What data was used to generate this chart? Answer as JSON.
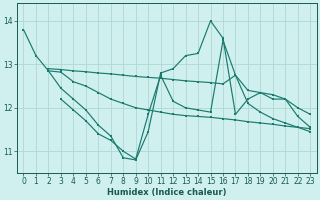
{
  "background_color": "#cff0ee",
  "grid_color": "#b0d8d4",
  "line_color": "#1a7a6e",
  "xlabel": "Humidex (Indice chaleur)",
  "xlim": [
    -0.5,
    23.5
  ],
  "ylim": [
    10.5,
    14.4
  ],
  "yticks": [
    11,
    12,
    13,
    14
  ],
  "xticks": [
    0,
    1,
    2,
    3,
    4,
    5,
    6,
    7,
    8,
    9,
    10,
    11,
    12,
    13,
    14,
    15,
    16,
    17,
    18,
    19,
    20,
    21,
    22,
    23
  ],
  "series": [
    {
      "x": [
        0,
        1,
        2,
        3,
        4,
        5,
        6,
        7,
        8,
        9,
        10,
        11,
        12,
        13,
        14,
        15,
        16,
        17,
        18,
        19,
        20,
        21,
        22,
        23
      ],
      "y": [
        13.8,
        13.2,
        12.85,
        12.45,
        12.2,
        11.95,
        11.6,
        11.35,
        10.85,
        10.8,
        11.45,
        12.8,
        12.9,
        13.2,
        13.25,
        14.0,
        13.6,
        11.85,
        12.2,
        12.35,
        12.2,
        12.2,
        11.8,
        11.55
      ]
    },
    {
      "x": [
        2,
        3,
        4,
        5,
        6,
        7,
        8,
        9,
        10,
        11,
        12,
        13,
        14,
        15,
        16,
        17,
        18,
        19,
        20,
        21,
        22,
        23
      ],
      "y": [
        12.9,
        12.88,
        12.85,
        12.83,
        12.8,
        12.78,
        12.75,
        12.72,
        12.7,
        12.68,
        12.65,
        12.62,
        12.6,
        12.58,
        12.55,
        12.75,
        12.4,
        12.35,
        12.3,
        12.2,
        12.0,
        11.85
      ]
    },
    {
      "x": [
        2,
        3,
        4,
        5,
        6,
        7,
        8,
        9,
        10,
        11,
        12,
        13,
        14,
        15,
        16,
        17,
        18,
        19,
        20,
        21,
        22,
        23
      ],
      "y": [
        12.85,
        12.82,
        12.6,
        12.5,
        12.35,
        12.2,
        12.1,
        12.0,
        11.95,
        11.9,
        11.85,
        11.82,
        11.8,
        11.78,
        11.75,
        11.72,
        11.68,
        11.65,
        11.62,
        11.58,
        11.55,
        11.52
      ]
    },
    {
      "x": [
        3,
        4,
        5,
        6,
        7,
        8,
        9,
        10,
        11,
        12,
        13,
        14,
        15,
        16,
        17,
        18,
        19,
        20,
        21,
        22,
        23
      ],
      "y": [
        12.2,
        11.95,
        11.7,
        11.4,
        11.25,
        11.0,
        10.82,
        11.85,
        12.75,
        12.15,
        12.0,
        11.95,
        11.9,
        13.55,
        12.75,
        12.1,
        11.9,
        11.75,
        11.65,
        11.55,
        11.45
      ]
    }
  ]
}
